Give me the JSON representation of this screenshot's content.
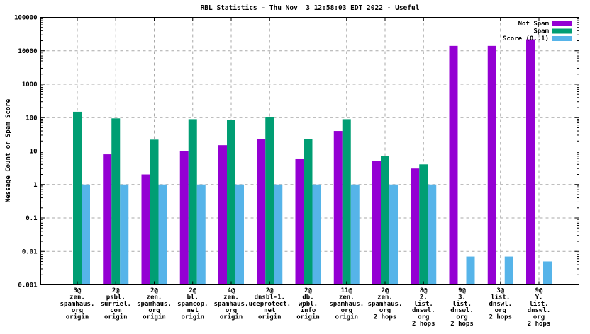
{
  "colors": {
    "background": "#ffffff",
    "border": "#000000",
    "grid": "#a9a9a9",
    "not_spam": "#9400d3",
    "spam": "#009e73",
    "score": "#56b4e9"
  },
  "chart_data": {
    "type": "bar",
    "title": "RBL Statistics - Thu Nov  3 12:58:03 EDT 2022 - Useful",
    "xlabel": "",
    "ylabel": "Message Count or Spam Score",
    "y_scale": "log",
    "ylim": [
      0.001,
      100000
    ],
    "y_ticks": [
      "100000",
      "10000",
      "1000",
      "100",
      "10",
      "1",
      "0.1",
      "0.01",
      "0.001"
    ],
    "grid": true,
    "legend_position": "top-right-inside",
    "categories": [
      [
        "3@",
        "zen.",
        "spamhaus.",
        "org",
        "origin"
      ],
      [
        "2@",
        "psbl.",
        "surriel.",
        "com",
        "origin"
      ],
      [
        "2@",
        "zen.",
        "spamhaus.",
        "org",
        "origin"
      ],
      [
        "2@",
        "bl.",
        "spamcop.",
        "net",
        "origin"
      ],
      [
        "4@",
        "zen.",
        "spamhaus.",
        "org",
        "origin"
      ],
      [
        "2@",
        "dnsbl-1.",
        "uceprotect.",
        "net",
        "origin"
      ],
      [
        "2@",
        "db.",
        "wpbl.",
        "info",
        "origin"
      ],
      [
        "11@",
        "zen.",
        "spamhaus.",
        "org",
        "origin"
      ],
      [
        "2@",
        "zen.",
        "spamhaus.",
        "org",
        "2 hops"
      ],
      [
        "8@",
        "2.",
        "list.",
        "dnswl.",
        "org",
        "2 hops"
      ],
      [
        "9@",
        "3.",
        "list.",
        "dnswl.",
        "org",
        "2 hops"
      ],
      [
        "3@",
        "list.",
        "dnswl.",
        "org",
        "2 hops"
      ],
      [
        "9@",
        "Y.",
        "list.",
        "dnswl.",
        "org",
        "2 hops"
      ]
    ],
    "series": [
      {
        "name": "Not Spam",
        "key": "not-spam",
        "color": "#9400d3",
        "values": [
          null,
          8,
          2,
          10,
          15,
          23,
          6,
          40,
          5,
          3,
          14000,
          14000,
          22000
        ]
      },
      {
        "name": "Spam",
        "key": "spam",
        "color": "#009e73",
        "values": [
          150,
          95,
          22,
          90,
          85,
          105,
          23,
          90,
          7,
          4,
          null,
          null,
          null
        ]
      },
      {
        "name": "Score (0..1)",
        "key": "score",
        "color": "#56b4e9",
        "values": [
          1,
          1,
          1,
          1,
          1,
          1,
          1,
          1,
          1,
          1,
          0.007,
          0.007,
          0.005
        ]
      }
    ]
  }
}
